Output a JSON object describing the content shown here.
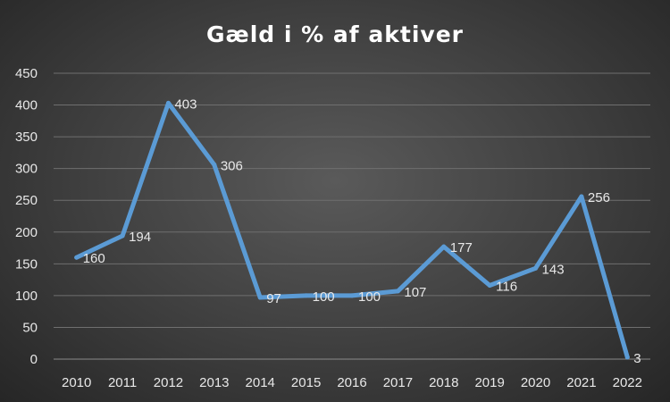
{
  "chart_data": {
    "type": "line",
    "title": "Gæld i % af aktiver",
    "xlabel": "",
    "ylabel": "",
    "categories": [
      "2010",
      "2011",
      "2012",
      "2013",
      "2014",
      "2015",
      "2016",
      "2017",
      "2018",
      "2019",
      "2020",
      "2021",
      "2022"
    ],
    "series": [
      {
        "values": [
          160,
          194,
          403,
          306,
          97,
          100,
          100,
          107,
          177,
          116,
          143,
          256,
          3
        ],
        "color": "#5b9bd5"
      }
    ],
    "data_labels": [
      "160",
      "194",
      "403",
      "306",
      "97",
      "100",
      "100",
      "107",
      "177",
      "116",
      "143",
      "256",
      "3"
    ],
    "yticks": [
      "0",
      "50",
      "100",
      "150",
      "200",
      "250",
      "300",
      "350",
      "400",
      "450"
    ],
    "ylim": [
      0,
      450
    ],
    "grid": true,
    "legend": "none"
  }
}
